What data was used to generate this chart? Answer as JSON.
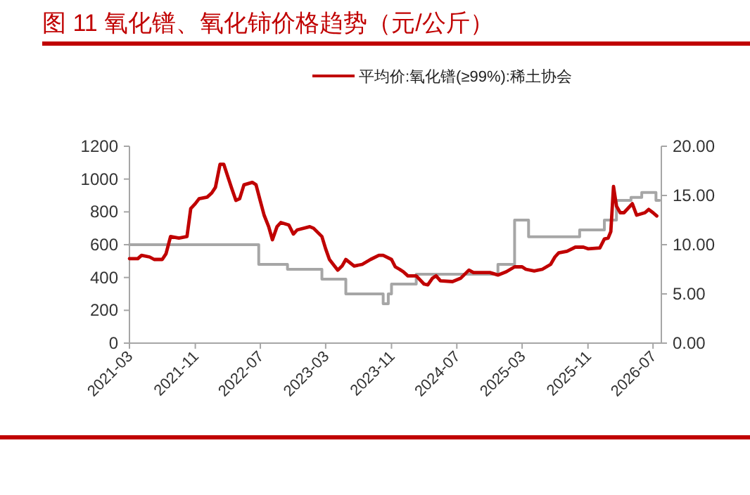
{
  "chart_data": {
    "type": "line",
    "title": "图 11 氧化镨、氧化铈价格趋势（元/公斤）",
    "legend": "top",
    "xlim": [
      "2021-03",
      "2026-08"
    ],
    "xticks": [
      "2021-03",
      "2021-11",
      "2022-07",
      "2023-03",
      "2023-11",
      "2024-07",
      "2025-03",
      "2025-11",
      "2026-07"
    ],
    "ylim": [
      0,
      1200
    ],
    "yticks": [
      0,
      200,
      400,
      600,
      800,
      1000,
      1200
    ],
    "y2lim": [
      0,
      20
    ],
    "y2ticks": [
      {
        "value": 0,
        "label": "0.00"
      },
      {
        "value": 5,
        "label": "5.00"
      },
      {
        "value": 10,
        "label": "10.00"
      },
      {
        "value": 15,
        "label": "15.00"
      },
      {
        "value": 20,
        "label": "20.00"
      }
    ],
    "series": [
      {
        "name": "平均价:氧化镨(≥99%):稀土协会",
        "color": "#c00000",
        "type": "line",
        "x": [
          "2021-03",
          "2021-04",
          "2021-04-15",
          "2021-05-15",
          "2021-06",
          "2021-07",
          "2021-07-15",
          "2021-08",
          "2021-09",
          "2021-10",
          "2021-10-15",
          "2021-11",
          "2021-11-15",
          "2021-12-15",
          "2022-01",
          "2022-01-15",
          "2022-02",
          "2022-02-15",
          "2022-03-15",
          "2022-04",
          "2022-04-15",
          "2022-05",
          "2022-06",
          "2022-06-15",
          "2022-07",
          "2022-07-15",
          "2022-08",
          "2022-08-15",
          "2022-09",
          "2022-09-15",
          "2022-10-15",
          "2022-11",
          "2022-11-15",
          "2023-01",
          "2023-01-15",
          "2023-02-15",
          "2023-03",
          "2023-03-15",
          "2023-04-15",
          "2023-05",
          "2023-05-15",
          "2023-06-15",
          "2023-07-15",
          "2023-08-15",
          "2023-09-15",
          "2023-10",
          "2023-11",
          "2023-11-15",
          "2023-12",
          "2023-12-15",
          "2024-01",
          "2024-02",
          "2024-03",
          "2024-03-15",
          "2024-04",
          "2024-04-15",
          "2024-05",
          "2024-06-15",
          "2024-07-15",
          "2024-08-15",
          "2024-09",
          "2024-11",
          "2024-12",
          "2025-01",
          "2025-02",
          "2025-03",
          "2025-03-15",
          "2025-04-15",
          "2025-05-15",
          "2025-06-15",
          "2025-07",
          "2025-07-15",
          "2025-08-15",
          "2025-09-15",
          "2025-10-15",
          "2025-11",
          "2025-12-15",
          "2026-01",
          "2026-01-15",
          "2026-01-25",
          "2026-02-04",
          "2026-02-15",
          "2026-03",
          "2026-03-15",
          "2026-04-15",
          "2026-05",
          "2026-06",
          "2026-06-15",
          "2026-07",
          "2026-07-15"
        ],
        "values": [
          515,
          515,
          535,
          525,
          510,
          510,
          545,
          650,
          640,
          650,
          820,
          850,
          880,
          890,
          915,
          950,
          1090,
          1090,
          950,
          870,
          880,
          965,
          980,
          965,
          865,
          780,
          710,
          630,
          710,
          735,
          720,
          665,
          690,
          710,
          700,
          650,
          575,
          510,
          445,
          470,
          510,
          470,
          480,
          510,
          535,
          535,
          510,
          465,
          450,
          435,
          410,
          410,
          360,
          355,
          395,
          410,
          380,
          375,
          395,
          445,
          430,
          430,
          415,
          435,
          465,
          465,
          450,
          440,
          450,
          480,
          525,
          550,
          560,
          585,
          585,
          575,
          580,
          635,
          640,
          680,
          955,
          835,
          795,
          795,
          850,
          780,
          795,
          815,
          795,
          775
        ]
      },
      {
        "color": "#a6a6a6",
        "type": "step",
        "axis": "y2",
        "x": [
          "2021-03",
          "2022-06-25",
          "2022-10-10",
          "2023-02-15",
          "2023-05-15",
          "2023-10",
          "2023-10-20",
          "2023-11",
          "2024-02",
          "2024-12",
          "2025-02",
          "2025-03-25",
          "2025-10",
          "2026-01",
          "2026-02-15",
          "2026-04-10",
          "2026-05-20",
          "2026-07-12",
          "2026-07-25"
        ],
        "values": [
          10,
          8,
          7.5,
          6.5,
          5,
          4,
          5,
          6,
          7,
          8,
          12.5,
          10.8,
          11.5,
          12.5,
          14.5,
          14.8,
          15.3,
          14.5,
          14.5
        ]
      }
    ]
  }
}
